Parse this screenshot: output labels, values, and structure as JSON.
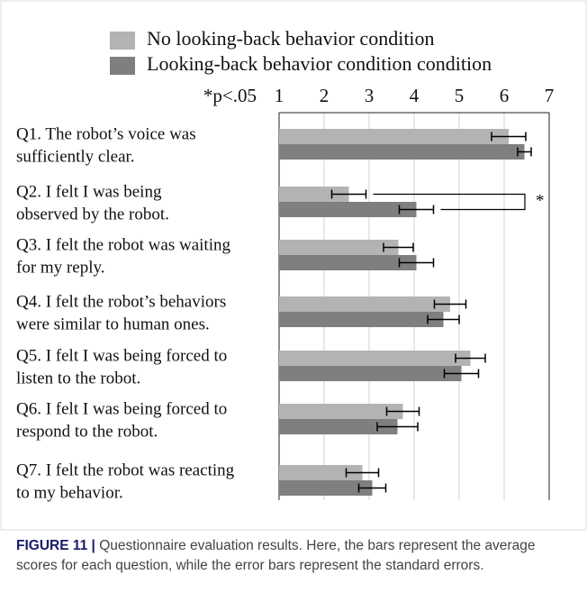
{
  "chart_data": {
    "type": "bar",
    "orientation": "horizontal",
    "significance_label": "*p<.05",
    "categories": [
      [
        "Q1. The robot’s voice was",
        "sufficiently clear."
      ],
      [
        "Q2. I felt I was being",
        "observed by the robot."
      ],
      [
        "Q3. I felt the robot was waiting",
        "for my reply."
      ],
      [
        "Q4. I felt the robot’s behaviors",
        "were similar to human ones."
      ],
      [
        "Q5. I felt I was being forced to",
        "listen to the robot."
      ],
      [
        "Q6. I felt I was being forced to",
        "respond to the robot."
      ],
      [
        "Q7. I felt the robot was reacting",
        "to my behavior."
      ]
    ],
    "series": [
      {
        "name": "No looking-back behavior condition",
        "color": "#b3b3b3",
        "values": [
          6.1,
          2.55,
          3.65,
          4.8,
          5.25,
          3.75,
          2.85
        ],
        "errors": [
          0.38,
          0.38,
          0.33,
          0.35,
          0.33,
          0.36,
          0.36
        ]
      },
      {
        "name": "Looking-back behavior condition condition",
        "color": "#7f7f7f",
        "values": [
          6.45,
          4.05,
          4.05,
          4.65,
          5.05,
          3.63,
          3.07
        ],
        "errors": [
          0.15,
          0.38,
          0.38,
          0.35,
          0.38,
          0.45,
          0.3
        ]
      }
    ],
    "xlim": [
      1,
      7
    ],
    "xticks": [
      1,
      2,
      3,
      4,
      5,
      6,
      7
    ],
    "grid": true,
    "annotations": [
      {
        "text": "*",
        "category": 1
      }
    ]
  },
  "caption": {
    "label": "FIGURE 11 |",
    "text": "Questionnaire evaluation results. Here, the bars represent the average scores for each question, while the error bars represent the standard errors."
  }
}
